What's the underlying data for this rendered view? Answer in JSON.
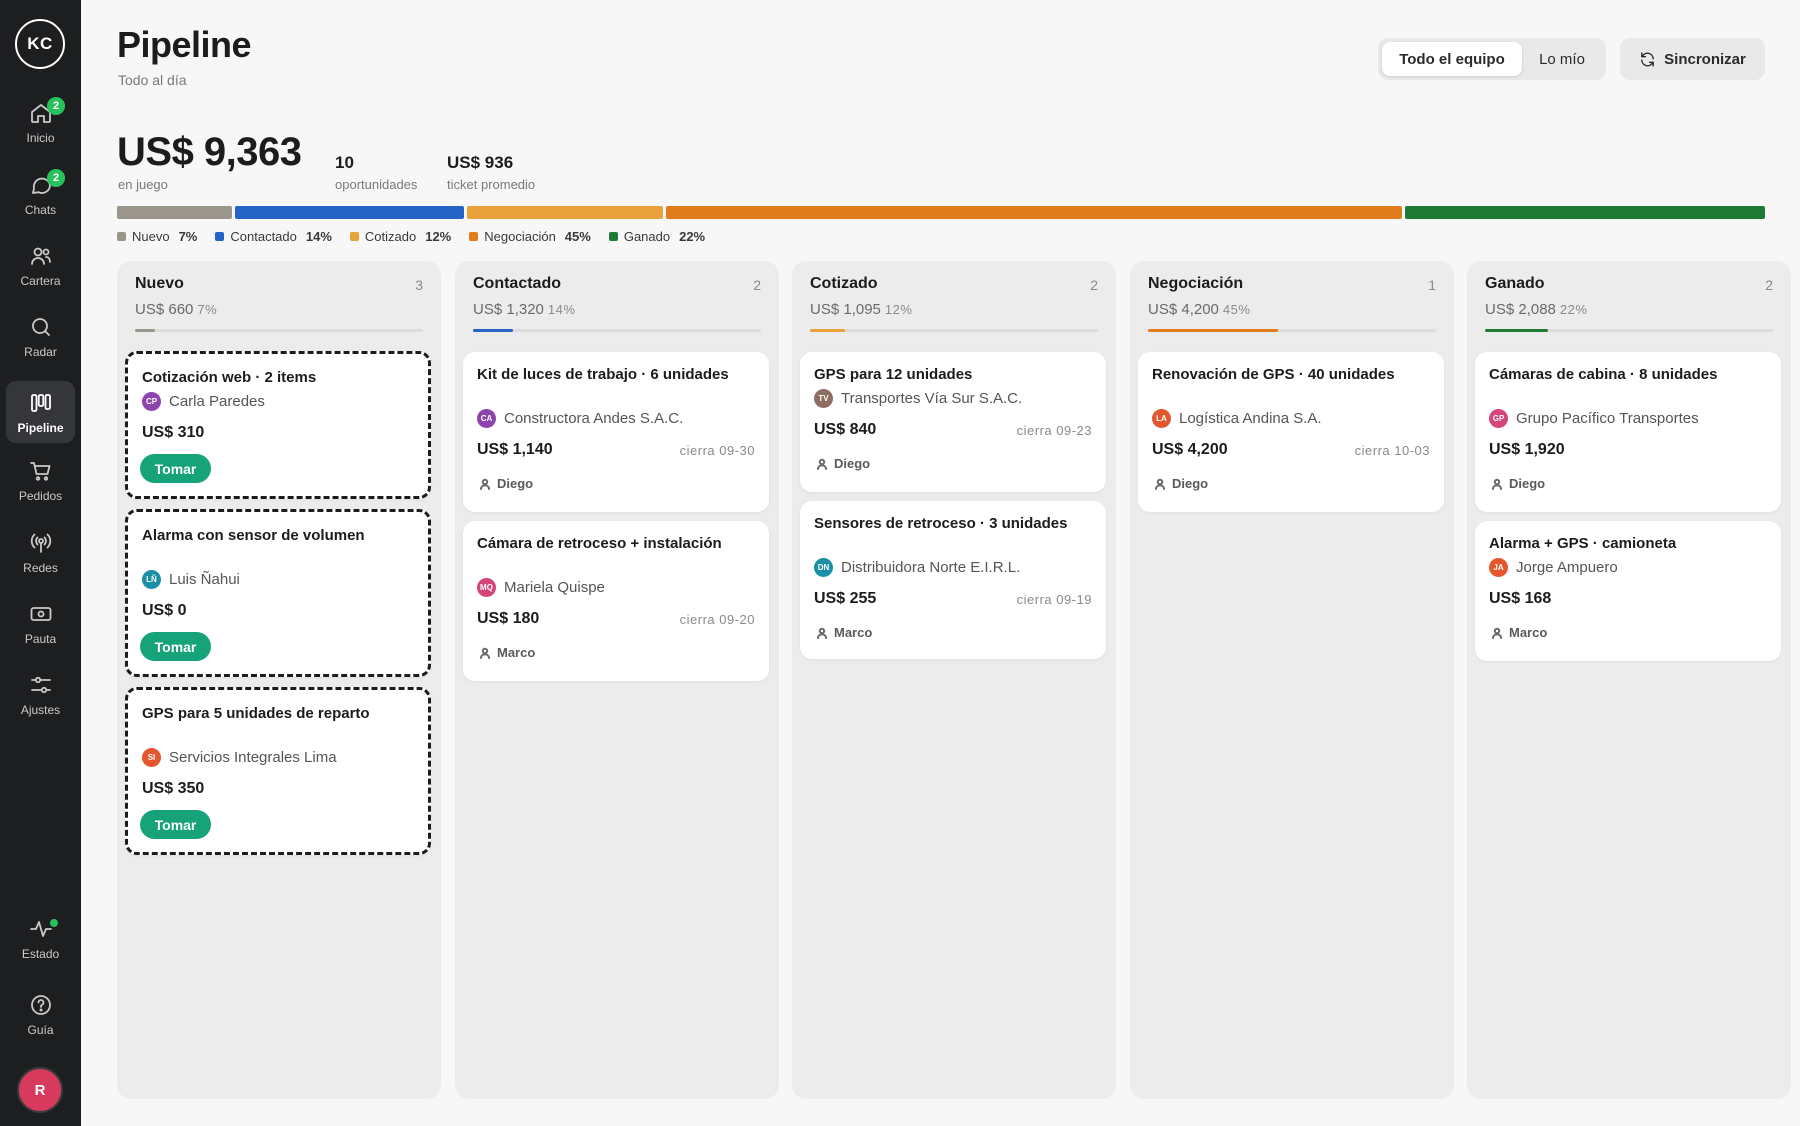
{
  "brand": {
    "initials": "KC"
  },
  "nav": [
    {
      "key": "inicio",
      "label": "Inicio",
      "badge": "2",
      "icon": "home-icon"
    },
    {
      "key": "chats",
      "label": "Chats",
      "badge": "2",
      "icon": "chat-icon"
    },
    {
      "key": "cartera",
      "label": "Cartera",
      "icon": "users-icon"
    },
    {
      "key": "radar",
      "label": "Radar",
      "icon": "search-icon"
    },
    {
      "key": "pipeline",
      "label": "Pipeline",
      "active": true,
      "icon": "columns-icon"
    },
    {
      "key": "pedidos",
      "label": "Pedidos",
      "icon": "cart-icon"
    },
    {
      "key": "redes",
      "label": "Redes",
      "icon": "broadcast-icon"
    },
    {
      "key": "pauta",
      "label": "Pauta",
      "icon": "money-icon"
    },
    {
      "key": "ajustes",
      "label": "Ajustes",
      "icon": "sliders-icon"
    }
  ],
  "footer_nav": [
    {
      "key": "estado",
      "label": "Estado",
      "icon": "activity-icon"
    },
    {
      "key": "guia",
      "label": "Guía",
      "icon": "help-icon"
    }
  ],
  "user": {
    "initial": "R"
  },
  "header": {
    "title": "Pipeline",
    "subtitle": "Todo al día"
  },
  "filter": {
    "team_label": "Todo el equipo",
    "mine_label": "Lo mío",
    "selected": "team"
  },
  "sync": {
    "label": "Sincronizar"
  },
  "summary": {
    "total": "US$ 9,363",
    "total_label": "en juego",
    "opportunities": "10",
    "opportunities_label": "oportunidades",
    "avg_ticket": "US$ 936",
    "avg_ticket_label": "ticket promedio"
  },
  "stages": [
    {
      "name": "Nuevo",
      "pct_label": "7%",
      "share": 0.07,
      "color": "#9a968c"
    },
    {
      "name": "Contactado",
      "pct_label": "14%",
      "share": 0.14,
      "color": "#2563c7"
    },
    {
      "name": "Cotizado",
      "pct_label": "12%",
      "share": 0.12,
      "color": "#e9a23b"
    },
    {
      "name": "Negociación",
      "pct_label": "45%",
      "share": 0.45,
      "color": "#e07c1a"
    },
    {
      "name": "Ganado",
      "pct_label": "22%",
      "share": 0.22,
      "color": "#1f7a36"
    }
  ],
  "columns": [
    {
      "title": "Nuevo",
      "count": "3",
      "amount": "US$ 660",
      "pct": "7%",
      "color": "#9a968c",
      "share": 0.07
    },
    {
      "title": "Contactado",
      "count": "2",
      "amount": "US$ 1,320",
      "pct": "14%",
      "color": "#2563c7",
      "share": 0.14
    },
    {
      "title": "Cotizado",
      "count": "2",
      "amount": "US$ 1,095",
      "pct": "12%",
      "color": "#e9a23b",
      "share": 0.12
    },
    {
      "title": "Negociación",
      "count": "1",
      "amount": "US$ 4,200",
      "pct": "45%",
      "color": "#e07c1a",
      "share": 0.45
    },
    {
      "title": "Ganado",
      "count": "2",
      "amount": "US$ 2,088",
      "pct": "22%",
      "color": "#1f7a36",
      "share": 0.22
    }
  ],
  "cards": {
    "c1": {
      "title": "Cotización web · 2 items",
      "initials": "CP",
      "company": "Carla Paredes",
      "amount": "US$ 310",
      "action": "Tomar",
      "avatar_color": "#8e44ad"
    },
    "c2": {
      "title": "Alarma con sensor de volumen",
      "initials": "LÑ",
      "company": "Luis Ñahui",
      "amount": "US$ 0",
      "action": "Tomar",
      "avatar_color": "#1b8fa6"
    },
    "c3": {
      "title": "GPS para 5 unidades de reparto",
      "initials": "SI",
      "company": "Servicios Integrales Lima",
      "amount": "US$ 350",
      "action": "Tomar",
      "avatar_color": "#e4572e"
    },
    "c4": {
      "title": "Kit de luces de trabajo · 6 unidades",
      "initials": "CA",
      "company": "Constructora Andes S.A.C.",
      "amount": "US$ 1,140",
      "close": "cierra 09-30",
      "owner": "Diego",
      "avatar_color": "#8e44ad"
    },
    "c5": {
      "title": "Cámara de retroceso + instalación",
      "initials": "MQ",
      "company": "Mariela Quispe",
      "amount": "US$ 180",
      "close": "cierra 09-20",
      "owner": "Marco",
      "avatar_color": "#d6457a"
    },
    "c6": {
      "title": "GPS para 12 unidades",
      "initials": "TV",
      "company": "Transportes Vía Sur S.A.C.",
      "amount": "US$ 840",
      "close": "cierra 09-23",
      "owner": "Diego",
      "avatar_color": "#8d6e63"
    },
    "c7": {
      "title": "Sensores de retroceso · 3 unidades",
      "initials": "DN",
      "company": "Distribuidora Norte E.I.R.L.",
      "amount": "US$ 255",
      "close": "cierra 09-19",
      "owner": "Marco",
      "avatar_color": "#1b8fa6"
    },
    "c8": {
      "title": "Renovación de GPS · 40 unidades",
      "initials": "LA",
      "company": "Logística Andina S.A.",
      "amount": "US$ 4,200",
      "close": "cierra 10-03",
      "owner": "Diego",
      "avatar_color": "#e4572e"
    },
    "c9": {
      "title": "Cámaras de cabina · 8 unidades",
      "initials": "GP",
      "company": "Grupo Pacífico Transportes",
      "amount": "US$ 1,920",
      "owner": "Diego",
      "avatar_color": "#d6457a"
    },
    "c10": {
      "title": "Alarma + GPS · camioneta",
      "initials": "JA",
      "company": "Jorge Ampuero",
      "amount": "US$ 168",
      "owner": "Marco",
      "avatar_color": "#e4572e"
    }
  }
}
